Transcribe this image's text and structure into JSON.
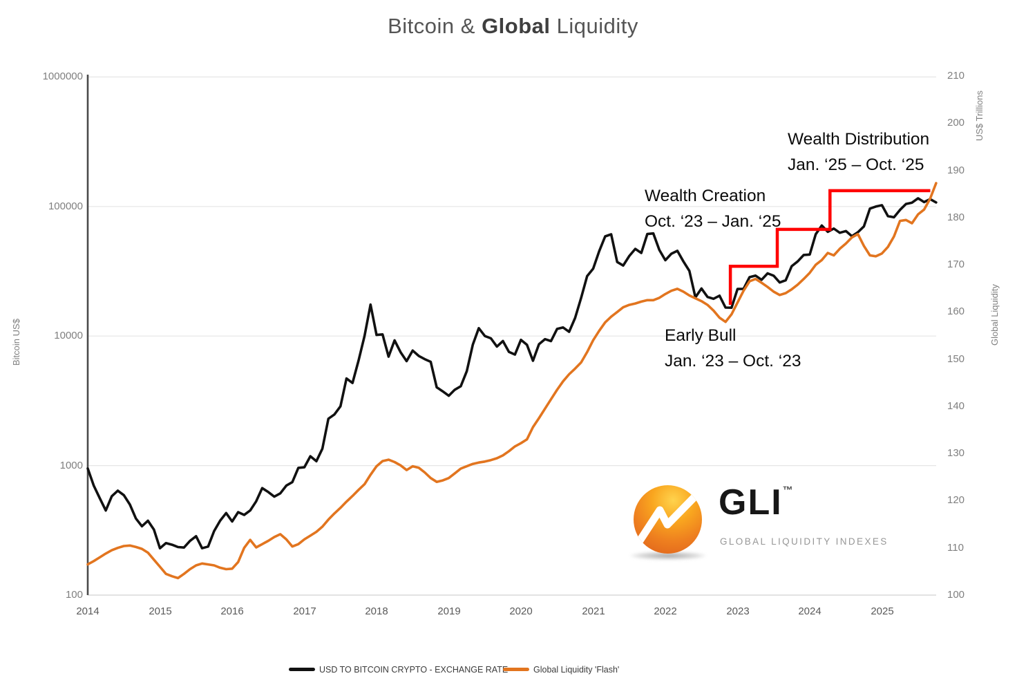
{
  "title": {
    "prefix": "Bitcoin & ",
    "bold": "Global",
    "suffix": " Liquidity"
  },
  "chart_data": {
    "type": "line",
    "title": "Bitcoin & Global Liquidity",
    "x_axis": {
      "tick_years": [
        2014,
        2015,
        2016,
        2017,
        2018,
        2019,
        2020,
        2021,
        2022,
        2023,
        2024,
        2025
      ]
    },
    "left_axis": {
      "title": "Bitcoin US$",
      "scale": "log",
      "tick_values": [
        1000000,
        100000,
        10000,
        1000,
        100
      ],
      "range": [
        100,
        1000000
      ]
    },
    "right_axis": {
      "title_top": "US$ Trillions",
      "title_bottom": "Global Liquidity",
      "scale": "linear",
      "tick_values": [
        210,
        200,
        190,
        180,
        170,
        160,
        150,
        140,
        130,
        120,
        110,
        100
      ],
      "range": [
        100,
        210
      ]
    },
    "grid": "horizontal-decades",
    "legend_position": "bottom-center",
    "series": [
      {
        "name": "USD TO BITCOIN CRYPTO - EXCHANGE RATE",
        "color": "#111111",
        "axis": "left",
        "start_year": 2014,
        "interval_months": 1,
        "values": [
          950,
          700,
          560,
          450,
          580,
          640,
          590,
          500,
          390,
          340,
          375,
          320,
          230,
          252,
          245,
          235,
          233,
          262,
          285,
          230,
          237,
          312,
          375,
          430,
          370,
          437,
          416,
          450,
          530,
          670,
          625,
          575,
          610,
          700,
          745,
          960,
          970,
          1180,
          1080,
          1350,
          2300,
          2480,
          2870,
          4700,
          4340,
          6450,
          10000,
          17500,
          10200,
          10300,
          6930,
          9250,
          7500,
          6400,
          7730,
          7030,
          6630,
          6320,
          4020,
          3740,
          3460,
          3850,
          4100,
          5350,
          8570,
          11500,
          10000,
          9600,
          8300,
          9150,
          7550,
          7190,
          9350,
          8550,
          6440,
          8650,
          9460,
          9140,
          11350,
          11650,
          10780,
          13800,
          19700,
          29000,
          33100,
          45100,
          58800,
          61000,
          37300,
          35000,
          41500,
          47100,
          43800,
          61300,
          62000,
          46200,
          38500,
          43200,
          45500,
          37700,
          31800,
          19900,
          23300,
          20050,
          19400,
          20500,
          16600,
          16550,
          23100,
          23150,
          28500,
          29250,
          27200,
          30480,
          29230,
          25930,
          26970,
          34650,
          37720,
          42280,
          42580,
          61200,
          71330,
          63800,
          67540,
          62670,
          64630,
          58970,
          63330,
          70220,
          96400,
          100000,
          102400,
          84350,
          82550,
          94200,
          104600,
          107170,
          115760,
          108240,
          114060,
          107500
        ]
      },
      {
        "name": "Global Liquidity 'Flash'",
        "color": "#E2751F",
        "axis": "right",
        "start_year": 2014,
        "interval_months": 1,
        "values": [
          106.5,
          107.2,
          108.0,
          108.8,
          109.5,
          110.0,
          110.4,
          110.5,
          110.2,
          109.8,
          109.0,
          107.5,
          106.0,
          104.5,
          104.0,
          103.6,
          104.5,
          105.5,
          106.3,
          106.7,
          106.5,
          106.3,
          105.8,
          105.5,
          105.6,
          107.0,
          110.0,
          111.7,
          110.1,
          110.8,
          111.5,
          112.3,
          112.9,
          111.8,
          110.3,
          110.8,
          111.8,
          112.6,
          113.4,
          114.5,
          116.0,
          117.3,
          118.5,
          119.8,
          121.0,
          122.3,
          123.5,
          125.5,
          127.3,
          128.4,
          128.7,
          128.2,
          127.5,
          126.5,
          127.3,
          127.0,
          126.0,
          124.8,
          124.0,
          124.3,
          124.8,
          125.8,
          126.8,
          127.3,
          127.8,
          128.1,
          128.3,
          128.6,
          129.0,
          129.6,
          130.5,
          131.5,
          132.2,
          133.0,
          135.6,
          137.5,
          139.5,
          141.5,
          143.5,
          145.3,
          146.8,
          148.0,
          149.3,
          151.5,
          154.0,
          156.0,
          157.8,
          159.0,
          160.0,
          161.0,
          161.5,
          161.8,
          162.2,
          162.5,
          162.5,
          163.0,
          163.8,
          164.5,
          164.9,
          164.3,
          163.5,
          162.9,
          162.3,
          161.5,
          160.3,
          158.8,
          157.9,
          159.5,
          162.0,
          164.5,
          166.5,
          167.0,
          166.2,
          165.3,
          164.3,
          163.6,
          164.0,
          164.8,
          165.8,
          167.0,
          168.3,
          170.0,
          171.0,
          172.5,
          172.0,
          173.4,
          174.5,
          175.8,
          176.5,
          174.0,
          172.0,
          171.8,
          172.4,
          173.8,
          176.0,
          179.3,
          179.5,
          178.8,
          180.7,
          181.7,
          184.0,
          187.3
        ]
      }
    ],
    "annotations": {
      "phases": [
        {
          "label": "Early Bull",
          "range": "Jan. ‘23 – Oct. ‘23"
        },
        {
          "label": "Wealth Creation",
          "range": "Oct. ‘23 – Jan. ‘25"
        },
        {
          "label": "Wealth Distribution",
          "range": "Jan. ‘25 – Oct. ‘25"
        }
      ],
      "red_step_line": {
        "color": "#FF0000",
        "points_year_value": [
          [
            2022.9,
            161.5
          ],
          [
            2022.9,
            169.7
          ],
          [
            2023.55,
            169.7
          ],
          [
            2023.55,
            177.5
          ],
          [
            2024.28,
            177.5
          ],
          [
            2024.28,
            185.7
          ],
          [
            2025.67,
            185.7
          ]
        ]
      }
    }
  },
  "legend": {
    "bitcoin_label": "USD TO BITCOIN CRYPTO - EXCHANGE RATE",
    "liquidity_label": "Global Liquidity 'Flash'"
  },
  "logo": {
    "text": "GLI",
    "tm": "™",
    "subtext": "GLOBAL LIQUIDITY INDEXES"
  }
}
